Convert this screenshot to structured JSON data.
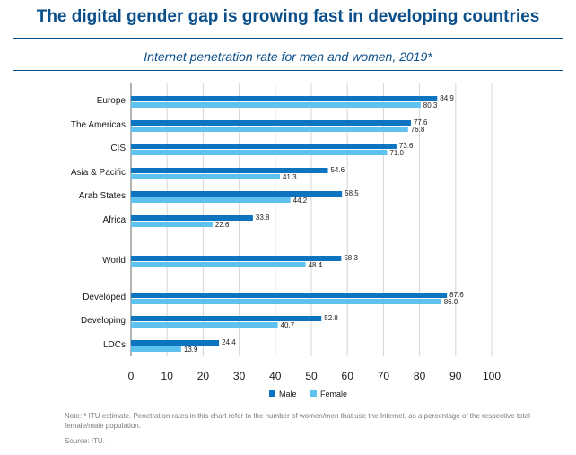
{
  "header": {
    "title": "The digital gender gap is growing fast in developing countries",
    "subtitle": "Internet penetration rate for men and women, 2019*"
  },
  "footer": {
    "note": "Note: * ITU estimate. Penetration rates in this chart refer to the number of women/men that use the Internet, as a percentage of the respective total female/male population.",
    "source": "Source: ITU."
  },
  "colors": {
    "male": "#0d74c2",
    "female": "#5ec1ee",
    "axis_text": "#1a1a1a",
    "grid": "#d6d6d6"
  },
  "chart_data": {
    "type": "bar",
    "orientation": "horizontal",
    "categories": [
      "Europe",
      "The Americas",
      "CIS",
      "Asia & Pacific",
      "Arab States",
      "Africa",
      "World",
      "Developed",
      "Developing",
      "LDCs"
    ],
    "series": [
      {
        "name": "Male",
        "values": [
          84.9,
          77.6,
          73.6,
          54.6,
          58.5,
          33.8,
          58.3,
          87.6,
          52.8,
          24.4
        ]
      },
      {
        "name": "Female",
        "values": [
          80.3,
          76.8,
          71.0,
          41.3,
          44.2,
          22.6,
          48.4,
          86.0,
          40.7,
          13.9
        ]
      }
    ],
    "xticks": [
      0,
      10,
      20,
      30,
      40,
      50,
      60,
      70,
      80,
      90,
      100
    ],
    "xlim": [
      0,
      100
    ],
    "grid": "vertical",
    "legend": "bottom-center"
  }
}
